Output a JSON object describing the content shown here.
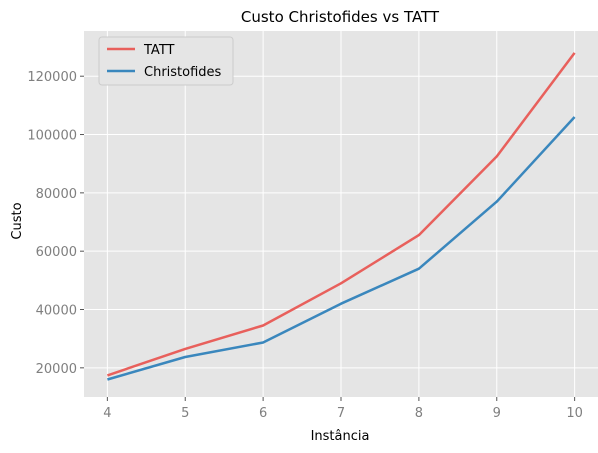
{
  "chart_data": {
    "type": "line",
    "title": "Custo Christofides vs TATT",
    "xlabel": "Instância",
    "ylabel": "Custo",
    "x": [
      4,
      5,
      6,
      7,
      8,
      9,
      10
    ],
    "xlim": [
      3.7,
      10.3
    ],
    "ylim": [
      10000,
      135500
    ],
    "yticks": [
      20000,
      40000,
      60000,
      80000,
      100000,
      120000
    ],
    "grid": true,
    "legend": "top-left",
    "series": [
      {
        "name": "TATT",
        "color": "#e8605c",
        "values": [
          17400,
          26500,
          34500,
          49000,
          65500,
          92500,
          128000
        ]
      },
      {
        "name": "Christofides",
        "color": "#3a87bd",
        "values": [
          16000,
          23700,
          28700,
          42000,
          54000,
          77000,
          106000
        ]
      }
    ]
  },
  "colors": {
    "axes_bg": "#e5e5e5",
    "grid": "#ffffff"
  }
}
